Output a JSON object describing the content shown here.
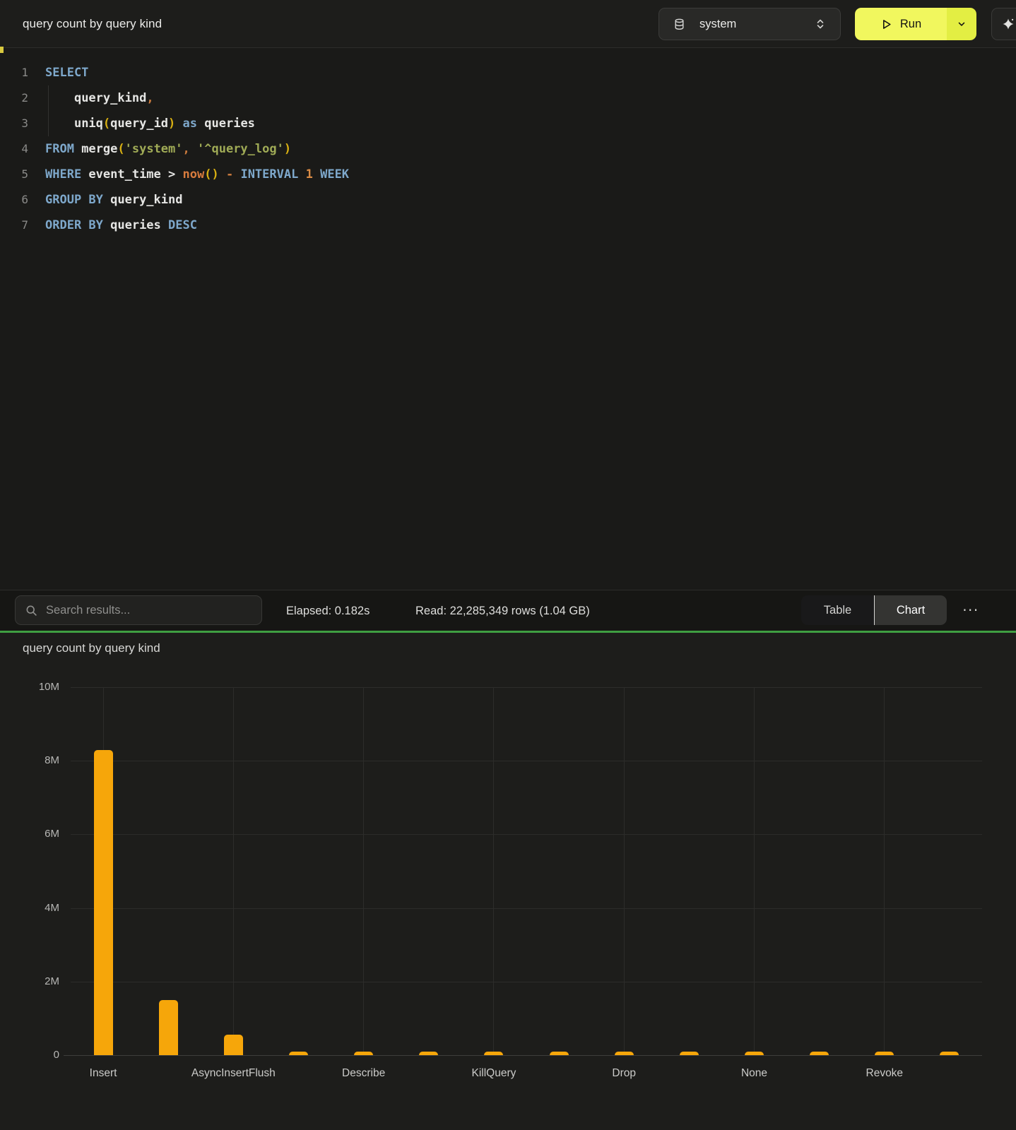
{
  "header": {
    "title": "query count by query kind",
    "database_selector": {
      "value": "system"
    },
    "run_button": {
      "label": "Run"
    }
  },
  "icons": {
    "database_selector_icon": "database-cylinder",
    "database_selector_caret": "up-down-chevrons",
    "run_icon": "play-triangle",
    "run_caret_icon": "chevron-down",
    "assistant_icon": "sparkle",
    "search_icon": "magnifier",
    "more_icon": "horizontal-ellipsis",
    "more_glyph": "···"
  },
  "editor": {
    "lines": [
      {
        "n": "1",
        "toks": [
          [
            "SELECT",
            "kw"
          ]
        ]
      },
      {
        "n": "2",
        "toks": [
          [
            "    ",
            "pl"
          ],
          [
            "query_kind",
            "id"
          ],
          [
            ",",
            "op"
          ]
        ]
      },
      {
        "n": "3",
        "toks": [
          [
            "    ",
            "pl"
          ],
          [
            "uniq",
            "id"
          ],
          [
            "(",
            "par"
          ],
          [
            "query_id",
            "id"
          ],
          [
            ")",
            "par"
          ],
          [
            " ",
            "pl"
          ],
          [
            "as",
            "kw"
          ],
          [
            " queries",
            "id"
          ]
        ]
      },
      {
        "n": "4",
        "toks": [
          [
            "FROM ",
            "kw"
          ],
          [
            "merge",
            "id"
          ],
          [
            "(",
            "par"
          ],
          [
            "'system'",
            "str"
          ],
          [
            ",",
            "op"
          ],
          [
            " ",
            "pl"
          ],
          [
            "'^query_log'",
            "str"
          ],
          [
            ")",
            "par"
          ]
        ]
      },
      {
        "n": "5",
        "toks": [
          [
            "WHERE ",
            "kw"
          ],
          [
            "event_time",
            "id"
          ],
          [
            " > ",
            "id"
          ],
          [
            "now",
            "fn"
          ],
          [
            "()",
            "par"
          ],
          [
            " ",
            "pl"
          ],
          [
            "-",
            "op"
          ],
          [
            " ",
            "pl"
          ],
          [
            "INTERVAL",
            "kw"
          ],
          [
            " ",
            "pl"
          ],
          [
            "1",
            "num"
          ],
          [
            " ",
            "pl"
          ],
          [
            "WEEK",
            "kw"
          ]
        ]
      },
      {
        "n": "6",
        "toks": [
          [
            "GROUP BY ",
            "kw"
          ],
          [
            "query_kind",
            "id"
          ]
        ]
      },
      {
        "n": "7",
        "toks": [
          [
            "ORDER BY ",
            "kw"
          ],
          [
            "queries",
            "id"
          ],
          [
            " ",
            "pl"
          ],
          [
            "DESC",
            "kw"
          ]
        ]
      }
    ]
  },
  "results": {
    "search_placeholder": "Search results...",
    "elapsed": "Elapsed: 0.182s",
    "read": "Read: 22,285,349 rows (1.04 GB)",
    "tabs": [
      "Table",
      "Chart"
    ],
    "selected_tab": "Chart"
  },
  "colors": {
    "accent_yellow": "#F1F75E",
    "accent_yellow_dark": "#E3EE43",
    "bar_orange": "#F6A60A",
    "divider_green": "#3F9E42"
  },
  "chart_data": {
    "type": "bar",
    "title": "query count by query kind",
    "x_tick_labels": [
      "Insert",
      "AsyncInsertFlush",
      "Describe",
      "KillQuery",
      "Drop",
      "None",
      "Revoke"
    ],
    "x_tick_interval": 2,
    "values": [
      8300000,
      1500000,
      550000,
      90000,
      90000,
      90000,
      90000,
      90000,
      90000,
      90000,
      90000,
      90000,
      90000,
      90000
    ],
    "xlabel": "",
    "ylabel": "",
    "ylim": [
      0,
      10000000
    ],
    "y_ticks": [
      {
        "label": "10M",
        "value": 10000000
      },
      {
        "label": "8M",
        "value": 8000000
      },
      {
        "label": "6M",
        "value": 6000000
      },
      {
        "label": "4M",
        "value": 4000000
      },
      {
        "label": "2M",
        "value": 2000000
      },
      {
        "label": "0",
        "value": 0
      }
    ],
    "grid": true,
    "legend": false,
    "bar_color": "#F6A60A"
  }
}
